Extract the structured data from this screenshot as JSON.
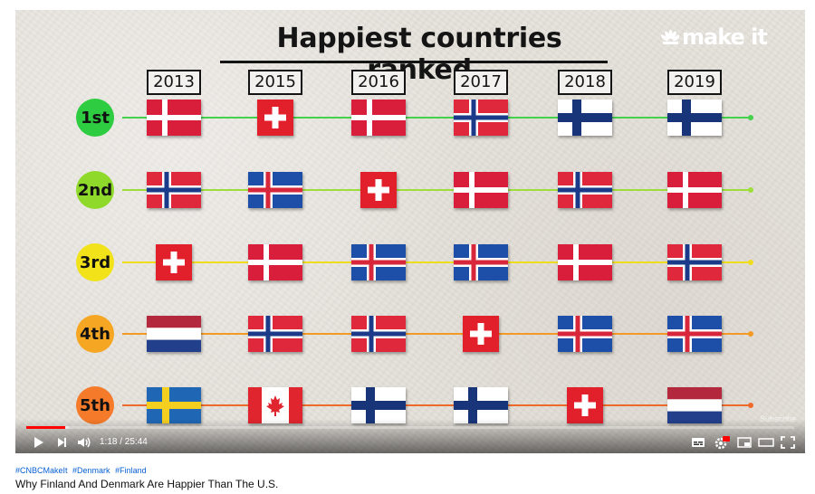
{
  "video": {
    "headline": "Happiest countries ranked",
    "brand": "make it",
    "years": [
      "2013",
      "2015",
      "2016",
      "2017",
      "2018",
      "2019"
    ],
    "ranks": [
      {
        "label": "1st",
        "color": "#2ecc40",
        "line_color": "#45d14a",
        "flags": [
          "denmark",
          "switzerland",
          "denmark",
          "norway",
          "finland",
          "finland"
        ]
      },
      {
        "label": "2nd",
        "color": "#8ed92a",
        "line_color": "#9ddd3c",
        "flags": [
          "norway",
          "iceland",
          "switzerland",
          "denmark",
          "norway",
          "denmark"
        ]
      },
      {
        "label": "3rd",
        "color": "#f2e21a",
        "line_color": "#f0dc1e",
        "flags": [
          "switzerland",
          "denmark",
          "iceland",
          "iceland",
          "denmark",
          "norway"
        ]
      },
      {
        "label": "4th",
        "color": "#f5a623",
        "line_color": "#f29a25",
        "flags": [
          "netherlands",
          "norway",
          "norway",
          "switzerland",
          "iceland",
          "iceland"
        ]
      },
      {
        "label": "5th",
        "color": "#f57a2a",
        "line_color": "#ef6a2a",
        "flags": [
          "sweden",
          "canada",
          "finland",
          "finland",
          "switzerland",
          "netherlands"
        ]
      }
    ],
    "subscribe_watermark": "Subscribe"
  },
  "player": {
    "current_time": "1:18",
    "duration": "25:44",
    "time_display": "1:18 / 25:44",
    "progress": 0.0505,
    "buffered": 0.055,
    "accent_color": "#ff0000",
    "controls": [
      "play-icon",
      "next-icon",
      "volume-icon",
      "subtitles-icon",
      "settings-icon",
      "miniplayer-icon",
      "theater-icon",
      "fullscreen-icon"
    ],
    "settings_badge": "HD"
  },
  "below_video": {
    "hashtags": [
      "#CNBCMakeIt",
      "#Denmark",
      "#Finland"
    ],
    "title": "Why Finland And Denmark Are Happier Than The U.S."
  }
}
